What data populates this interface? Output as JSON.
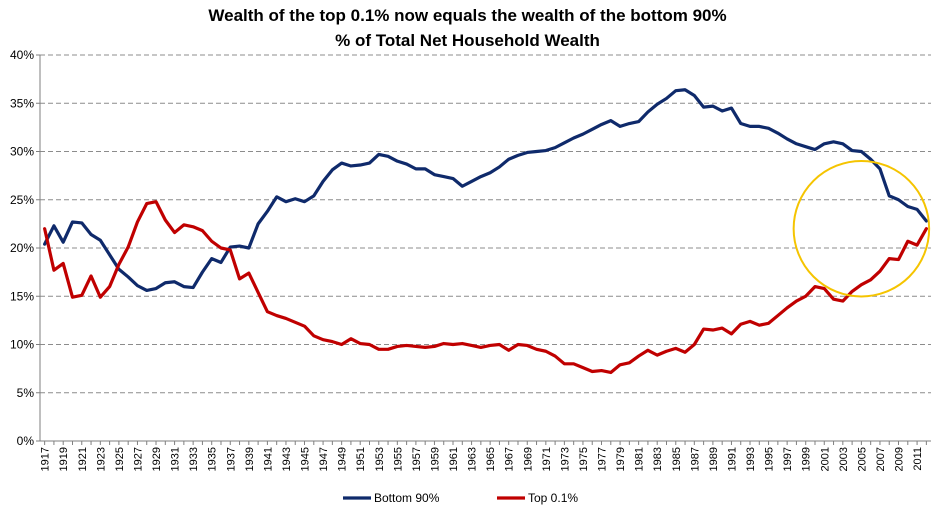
{
  "chart_data": {
    "type": "line",
    "title": "Wealth of the top 0.1% now equals the wealth of the bottom 90%",
    "subtitle": "% of Total Net Household Wealth",
    "xlabel": "",
    "ylabel": "",
    "xlim": [
      1917,
      2012
    ],
    "ylim": [
      0,
      40
    ],
    "y_ticks": [
      0,
      5,
      10,
      15,
      20,
      25,
      30,
      35,
      40
    ],
    "y_tick_suffix": "%",
    "x_tick_start": 1917,
    "x_tick_end": 2011,
    "x_tick_step": 2,
    "grid": "horizontal dashed",
    "legend_position": "bottom",
    "highlight_circle": {
      "center_year": 2005,
      "center_value": 22,
      "radius_years": 7.3,
      "color": "#f5c400"
    },
    "series": [
      {
        "name": "Bottom 90%",
        "color": "#0f2a6b",
        "points": [
          [
            1917,
            20.4
          ],
          [
            1918,
            22.3
          ],
          [
            1919,
            20.6
          ],
          [
            1920,
            22.7
          ],
          [
            1921,
            22.6
          ],
          [
            1922,
            21.4
          ],
          [
            1923,
            20.8
          ],
          [
            1924,
            19.3
          ],
          [
            1925,
            17.8
          ],
          [
            1926,
            17.0
          ],
          [
            1927,
            16.1
          ],
          [
            1928,
            15.6
          ],
          [
            1929,
            15.8
          ],
          [
            1930,
            16.4
          ],
          [
            1931,
            16.5
          ],
          [
            1932,
            16.0
          ],
          [
            1933,
            15.9
          ],
          [
            1934,
            17.5
          ],
          [
            1935,
            18.9
          ],
          [
            1936,
            18.5
          ],
          [
            1937,
            20.1
          ],
          [
            1938,
            20.2
          ],
          [
            1939,
            20.0
          ],
          [
            1940,
            22.5
          ],
          [
            1941,
            23.8
          ],
          [
            1942,
            25.3
          ],
          [
            1943,
            24.8
          ],
          [
            1944,
            25.1
          ],
          [
            1945,
            24.8
          ],
          [
            1946,
            25.4
          ],
          [
            1947,
            26.9
          ],
          [
            1948,
            28.1
          ],
          [
            1949,
            28.8
          ],
          [
            1950,
            28.5
          ],
          [
            1951,
            28.6
          ],
          [
            1952,
            28.8
          ],
          [
            1953,
            29.7
          ],
          [
            1954,
            29.5
          ],
          [
            1955,
            29.0
          ],
          [
            1956,
            28.7
          ],
          [
            1957,
            28.2
          ],
          [
            1958,
            28.2
          ],
          [
            1959,
            27.6
          ],
          [
            1960,
            27.4
          ],
          [
            1961,
            27.2
          ],
          [
            1962,
            26.4
          ],
          [
            1963,
            26.9
          ],
          [
            1964,
            27.4
          ],
          [
            1965,
            27.8
          ],
          [
            1966,
            28.4
          ],
          [
            1967,
            29.2
          ],
          [
            1968,
            29.6
          ],
          [
            1969,
            29.9
          ],
          [
            1970,
            30.0
          ],
          [
            1971,
            30.1
          ],
          [
            1972,
            30.4
          ],
          [
            1973,
            30.9
          ],
          [
            1974,
            31.4
          ],
          [
            1975,
            31.8
          ],
          [
            1976,
            32.3
          ],
          [
            1977,
            32.8
          ],
          [
            1978,
            33.2
          ],
          [
            1979,
            32.6
          ],
          [
            1980,
            32.9
          ],
          [
            1981,
            33.1
          ],
          [
            1982,
            34.1
          ],
          [
            1983,
            34.9
          ],
          [
            1984,
            35.5
          ],
          [
            1985,
            36.3
          ],
          [
            1986,
            36.4
          ],
          [
            1987,
            35.8
          ],
          [
            1988,
            34.6
          ],
          [
            1989,
            34.7
          ],
          [
            1990,
            34.2
          ],
          [
            1991,
            34.5
          ],
          [
            1992,
            32.9
          ],
          [
            1993,
            32.6
          ],
          [
            1994,
            32.6
          ],
          [
            1995,
            32.4
          ],
          [
            1996,
            31.9
          ],
          [
            1997,
            31.3
          ],
          [
            1998,
            30.8
          ],
          [
            1999,
            30.5
          ],
          [
            2000,
            30.2
          ],
          [
            2001,
            30.8
          ],
          [
            2002,
            31.0
          ],
          [
            2003,
            30.8
          ],
          [
            2004,
            30.1
          ],
          [
            2005,
            30.0
          ],
          [
            2006,
            29.2
          ],
          [
            2007,
            28.2
          ],
          [
            2008,
            25.4
          ],
          [
            2009,
            25.0
          ],
          [
            2010,
            24.3
          ],
          [
            2011,
            24.0
          ],
          [
            2012,
            22.8
          ]
        ]
      },
      {
        "name": "Top 0.1%",
        "color": "#c00000",
        "points": [
          [
            1917,
            22.0
          ],
          [
            1918,
            17.7
          ],
          [
            1919,
            18.4
          ],
          [
            1920,
            14.9
          ],
          [
            1921,
            15.1
          ],
          [
            1922,
            17.1
          ],
          [
            1923,
            14.9
          ],
          [
            1924,
            16.0
          ],
          [
            1925,
            18.3
          ],
          [
            1926,
            20.1
          ],
          [
            1927,
            22.7
          ],
          [
            1928,
            24.6
          ],
          [
            1929,
            24.8
          ],
          [
            1930,
            22.9
          ],
          [
            1931,
            21.6
          ],
          [
            1932,
            22.4
          ],
          [
            1933,
            22.2
          ],
          [
            1934,
            21.8
          ],
          [
            1935,
            20.7
          ],
          [
            1936,
            20.0
          ],
          [
            1937,
            19.8
          ],
          [
            1938,
            16.8
          ],
          [
            1939,
            17.4
          ],
          [
            1940,
            15.4
          ],
          [
            1941,
            13.4
          ],
          [
            1942,
            13.0
          ],
          [
            1943,
            12.7
          ],
          [
            1944,
            12.3
          ],
          [
            1945,
            11.9
          ],
          [
            1946,
            10.9
          ],
          [
            1947,
            10.5
          ],
          [
            1948,
            10.3
          ],
          [
            1949,
            10.0
          ],
          [
            1950,
            10.6
          ],
          [
            1951,
            10.1
          ],
          [
            1952,
            10.0
          ],
          [
            1953,
            9.5
          ],
          [
            1954,
            9.5
          ],
          [
            1955,
            9.8
          ],
          [
            1956,
            9.9
          ],
          [
            1957,
            9.8
          ],
          [
            1958,
            9.7
          ],
          [
            1959,
            9.8
          ],
          [
            1960,
            10.1
          ],
          [
            1961,
            10.0
          ],
          [
            1962,
            10.1
          ],
          [
            1963,
            9.9
          ],
          [
            1964,
            9.7
          ],
          [
            1965,
            9.9
          ],
          [
            1966,
            10.0
          ],
          [
            1967,
            9.4
          ],
          [
            1968,
            10.0
          ],
          [
            1969,
            9.9
          ],
          [
            1970,
            9.5
          ],
          [
            1971,
            9.3
          ],
          [
            1972,
            8.8
          ],
          [
            1973,
            8.0
          ],
          [
            1974,
            8.0
          ],
          [
            1975,
            7.6
          ],
          [
            1976,
            7.2
          ],
          [
            1977,
            7.3
          ],
          [
            1978,
            7.1
          ],
          [
            1979,
            7.9
          ],
          [
            1980,
            8.1
          ],
          [
            1981,
            8.8
          ],
          [
            1982,
            9.4
          ],
          [
            1983,
            8.9
          ],
          [
            1984,
            9.3
          ],
          [
            1985,
            9.6
          ],
          [
            1986,
            9.2
          ],
          [
            1987,
            10.0
          ],
          [
            1988,
            11.6
          ],
          [
            1989,
            11.5
          ],
          [
            1990,
            11.7
          ],
          [
            1991,
            11.1
          ],
          [
            1992,
            12.1
          ],
          [
            1993,
            12.4
          ],
          [
            1994,
            12.0
          ],
          [
            1995,
            12.2
          ],
          [
            1996,
            13.0
          ],
          [
            1997,
            13.8
          ],
          [
            1998,
            14.5
          ],
          [
            1999,
            15.0
          ],
          [
            2000,
            16.0
          ],
          [
            2001,
            15.8
          ],
          [
            2002,
            14.7
          ],
          [
            2003,
            14.5
          ],
          [
            2004,
            15.5
          ],
          [
            2005,
            16.2
          ],
          [
            2006,
            16.7
          ],
          [
            2007,
            17.6
          ],
          [
            2008,
            18.9
          ],
          [
            2009,
            18.8
          ],
          [
            2010,
            20.7
          ],
          [
            2011,
            20.3
          ],
          [
            2012,
            22.0
          ]
        ]
      }
    ]
  }
}
